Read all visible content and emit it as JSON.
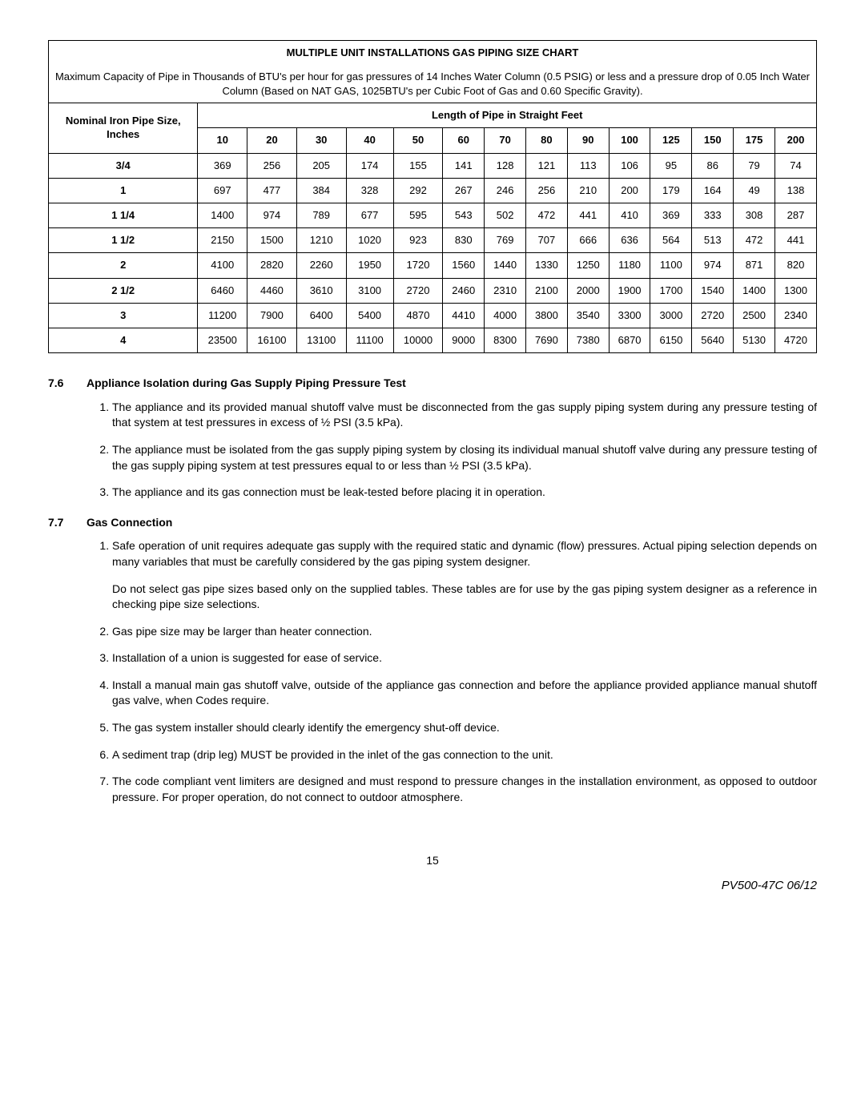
{
  "chart": {
    "title": "MULTIPLE UNIT INSTALLATIONS GAS PIPING SIZE CHART",
    "description": "Maximum Capacity of Pipe in Thousands of BTU's per hour for gas pressures of 14 Inches Water Column (0.5 PSIG) or less and a pressure drop of 0.05 Inch Water Column (Based on NAT GAS, 1025BTU's per Cubic Foot of Gas and 0.60 Specific Gravity).",
    "corner_header": "Nominal Iron Pipe Size, Inches",
    "length_header": "Length of Pipe in Straight Feet",
    "columns": [
      "10",
      "20",
      "30",
      "40",
      "50",
      "60",
      "70",
      "80",
      "90",
      "100",
      "125",
      "150",
      "175",
      "200"
    ],
    "rows": [
      {
        "label": "3/4",
        "cells": [
          "369",
          "256",
          "205",
          "174",
          "155",
          "141",
          "128",
          "121",
          "113",
          "106",
          "95",
          "86",
          "79",
          "74"
        ]
      },
      {
        "label": "1",
        "cells": [
          "697",
          "477",
          "384",
          "328",
          "292",
          "267",
          "246",
          "256",
          "210",
          "200",
          "179",
          "164",
          "49",
          "138"
        ]
      },
      {
        "label": "1 1/4",
        "cells": [
          "1400",
          "974",
          "789",
          "677",
          "595",
          "543",
          "502",
          "472",
          "441",
          "410",
          "369",
          "333",
          "308",
          "287"
        ]
      },
      {
        "label": "1 1/2",
        "cells": [
          "2150",
          "1500",
          "1210",
          "1020",
          "923",
          "830",
          "769",
          "707",
          "666",
          "636",
          "564",
          "513",
          "472",
          "441"
        ]
      },
      {
        "label": "2",
        "cells": [
          "4100",
          "2820",
          "2260",
          "1950",
          "1720",
          "1560",
          "1440",
          "1330",
          "1250",
          "1180",
          "1100",
          "974",
          "871",
          "820"
        ]
      },
      {
        "label": "2 1/2",
        "cells": [
          "6460",
          "4460",
          "3610",
          "3100",
          "2720",
          "2460",
          "2310",
          "2100",
          "2000",
          "1900",
          "1700",
          "1540",
          "1400",
          "1300"
        ]
      },
      {
        "label": "3",
        "cells": [
          "11200",
          "7900",
          "6400",
          "5400",
          "4870",
          "4410",
          "4000",
          "3800",
          "3540",
          "3300",
          "3000",
          "2720",
          "2500",
          "2340"
        ]
      },
      {
        "label": "4",
        "cells": [
          "23500",
          "16100",
          "13100",
          "11100",
          "10000",
          "9000",
          "8300",
          "7690",
          "7380",
          "6870",
          "6150",
          "5640",
          "5130",
          "4720"
        ]
      }
    ]
  },
  "section76": {
    "number": "7.6",
    "title": "Appliance Isolation during Gas Supply Piping Pressure Test",
    "items": [
      "The appliance and its provided manual shutoff valve must be disconnected from the gas supply piping system during any pressure testing of that system at test pressures in excess of ½ PSI (3.5 kPa).",
      "The appliance must be isolated from the gas supply piping system by closing its individual manual shutoff valve during any pressure testing of the gas supply piping system at test pressures equal to or less than ½ PSI (3.5 kPa).",
      "The appliance and its gas connection must be leak-tested before placing it in operation."
    ]
  },
  "section77": {
    "number": "7.7",
    "title": "Gas Connection",
    "items": [
      {
        "p1": "Safe operation of unit requires adequate gas supply with the required static and dynamic (flow) pressures. Actual piping selection depends on many variables that must be carefully considered by the gas piping system designer.",
        "p2": "Do not select gas pipe sizes based only on the supplied tables. These tables are for use by the gas piping system designer as a reference in checking pipe size selections."
      },
      {
        "p1": "Gas pipe size may be larger than heater connection."
      },
      {
        "p1": "Installation of a union is suggested for ease of service."
      },
      {
        "p1": "Install a manual main gas shutoff valve, outside of the appliance gas connection and before the appliance provided appliance manual shutoff gas valve, when Codes require."
      },
      {
        "p1": "The gas system installer should clearly identify the emergency shut-off device."
      },
      {
        "p1": "A sediment trap (drip leg) MUST be provided in the inlet of the gas connection to the unit."
      },
      {
        "p1": "The code compliant vent limiters are designed and must respond to pressure changes in the installation environment, as opposed to outdoor pressure. For proper operation, do not connect to outdoor atmosphere."
      }
    ]
  },
  "footer": {
    "page_number": "15",
    "doc_id": "PV500-47C  06/12"
  }
}
